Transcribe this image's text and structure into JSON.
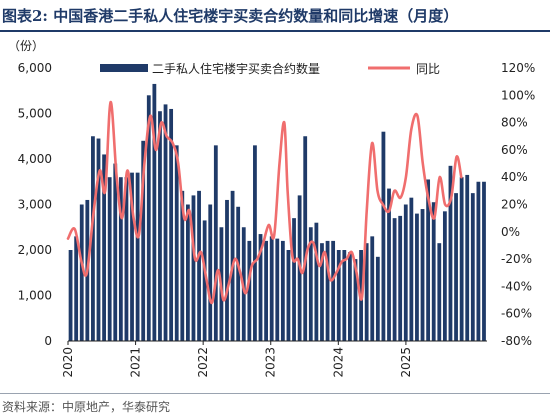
{
  "header": {
    "title": "图表2:  中国香港二手私人住宅楼宇买卖合约数量和同比增速（月度）"
  },
  "footer": {
    "source": "资料来源：中原地产，华泰研究"
  },
  "colors": {
    "bar": "#1f3a68",
    "line": "#f06e6e",
    "title": "#1f3a68"
  },
  "chart_data": {
    "type": "bar",
    "y_unit_label": "（份）",
    "x_tick_labels": [
      "2020",
      "2021",
      "2022",
      "2023",
      "2024",
      "2025"
    ],
    "y_left": {
      "lim": [
        0,
        6000
      ],
      "ticks": [
        "0",
        "1,000",
        "2,000",
        "3,000",
        "4,000",
        "5,000",
        "6,000"
      ]
    },
    "y_right": {
      "lim": [
        -80,
        120
      ],
      "ticks": [
        "-80%",
        "-60%",
        "-40%",
        "-20%",
        "0%",
        "20%",
        "40%",
        "60%",
        "80%",
        "100%",
        "120%"
      ]
    },
    "legend_placement": "top",
    "series": [
      {
        "name": "二手私人住宅楼宇买卖合约数量",
        "type": "bar",
        "axis": "left",
        "values": [
          2000,
          2300,
          3000,
          3100,
          4500,
          4450,
          4100,
          3600,
          3900,
          3600,
          3600,
          3700,
          3700,
          4400,
          5400,
          5650,
          5050,
          5200,
          5100,
          4300,
          3300,
          3000,
          3200,
          3300,
          2650,
          3000,
          4300,
          2500,
          3100,
          3300,
          2950,
          2500,
          2200,
          4300,
          2350,
          2200,
          2300,
          2250,
          2200,
          2000,
          2700,
          3200,
          4500,
          2500,
          2600,
          2150,
          2200,
          2200,
          2000,
          2000,
          1950,
          1800,
          2000,
          2150,
          2300,
          1850,
          4600,
          3350,
          2700,
          2750,
          3000,
          3150,
          2800,
          2900,
          3550,
          3050,
          2150,
          2850,
          3850,
          3250,
          3600,
          3650,
          3250,
          3500,
          3500
        ]
      },
      {
        "name": "同比",
        "type": "line",
        "axis": "right",
        "x": [
          2020.0,
          2020.1,
          2020.2,
          2020.28,
          2020.38,
          2020.47,
          2020.55,
          2020.63,
          2020.72,
          2020.8,
          2020.88,
          2020.97,
          2021.05,
          2021.13,
          2021.22,
          2021.3,
          2021.38,
          2021.46,
          2021.55,
          2021.63,
          2021.72,
          2021.8,
          2021.88,
          2021.97,
          2022.05,
          2022.13,
          2022.22,
          2022.3,
          2022.38,
          2022.47,
          2022.55,
          2022.63,
          2022.72,
          2022.8,
          2022.88,
          2022.97,
          2023.05,
          2023.13,
          2023.2,
          2023.25,
          2023.32,
          2023.4,
          2023.47,
          2023.55,
          2023.63,
          2023.72,
          2023.8,
          2023.88,
          2023.97,
          2024.05,
          2024.12,
          2024.2,
          2024.27,
          2024.35,
          2024.42,
          2024.5,
          2024.58,
          2024.66,
          2024.75,
          2024.83,
          2024.92,
          2025.0,
          2025.08,
          2025.17,
          2025.25,
          2025.33,
          2025.42,
          2025.5,
          2025.58,
          2025.67,
          2025.75,
          2025.82
        ],
        "y": [
          -5,
          2,
          -22,
          -30,
          15,
          45,
          30,
          95,
          40,
          10,
          45,
          10,
          -2,
          50,
          85,
          60,
          80,
          70,
          65,
          50,
          10,
          15,
          -20,
          -15,
          -35,
          -52,
          -28,
          -50,
          -38,
          -20,
          -30,
          -45,
          -25,
          -20,
          -10,
          5,
          -3,
          50,
          80,
          30,
          -18,
          -20,
          -30,
          -12,
          -8,
          -25,
          -15,
          -35,
          -30,
          -22,
          -20,
          -15,
          -30,
          -48,
          15,
          65,
          30,
          20,
          15,
          30,
          25,
          40,
          75,
          85,
          50,
          25,
          10,
          40,
          20,
          25,
          55,
          40
        ]
      }
    ]
  }
}
